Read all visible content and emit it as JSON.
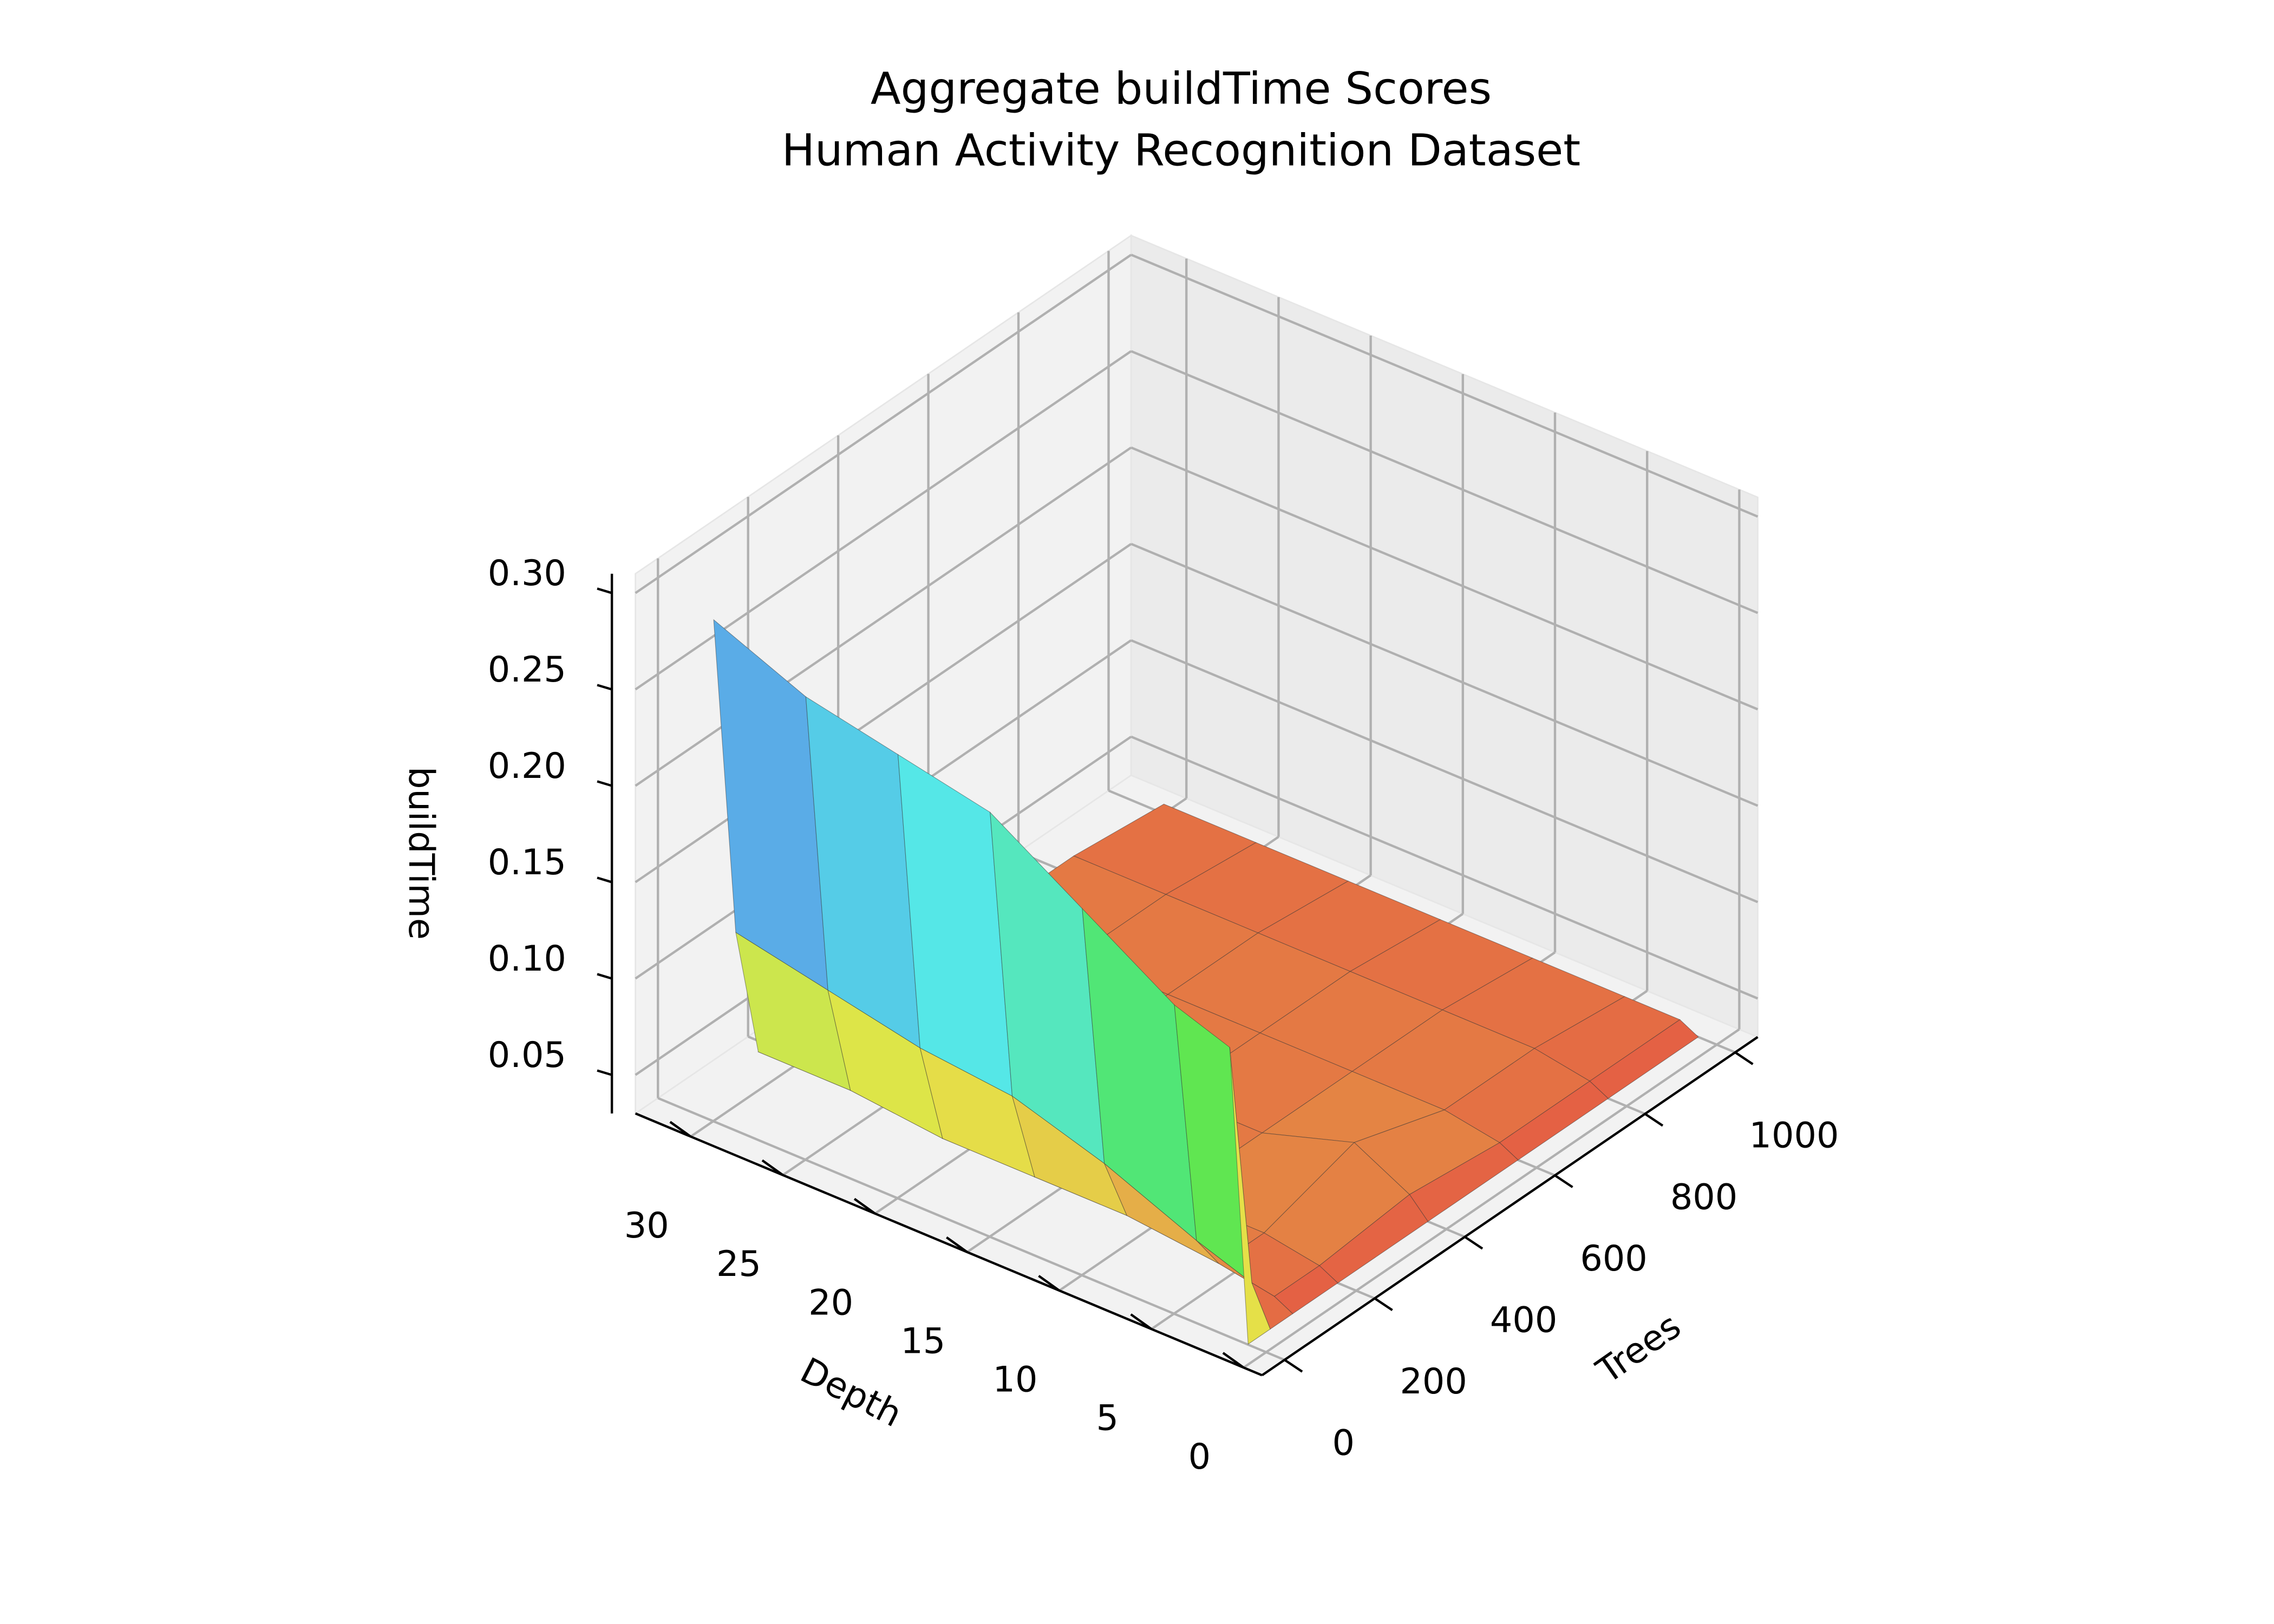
{
  "chart_data": {
    "type": "surface",
    "title": "Aggregate buildTime Scores",
    "subtitle": "Human Activity Recognition Dataset",
    "xlabel": "Trees",
    "ylabel": "Depth",
    "zlabel": "buildTime",
    "x": [
      1,
      50,
      100,
      200,
      400,
      600,
      800,
      1000
    ],
    "y": [
      1,
      2,
      5,
      10,
      15,
      20,
      25,
      30
    ],
    "z": [
      [
        0.03,
        0.03,
        0.03,
        0.03,
        0.03,
        0.03,
        0.03,
        0.03
      ],
      [
        0.18,
        0.05,
        0.035,
        0.035,
        0.04,
        0.035,
        0.035,
        0.035
      ],
      [
        0.19,
        0.06,
        0.04,
        0.04,
        0.055,
        0.04,
        0.04,
        0.035
      ],
      [
        0.22,
        0.08,
        0.045,
        0.04,
        0.04,
        0.04,
        0.04,
        0.035
      ],
      [
        0.25,
        0.095,
        0.045,
        0.04,
        0.04,
        0.04,
        0.04,
        0.035
      ],
      [
        0.26,
        0.1,
        0.045,
        0.04,
        0.04,
        0.04,
        0.04,
        0.035
      ],
      [
        0.27,
        0.11,
        0.05,
        0.04,
        0.04,
        0.04,
        0.04,
        0.035
      ],
      [
        0.29,
        0.12,
        0.05,
        0.04,
        0.04,
        0.04,
        0.04,
        0.035
      ]
    ],
    "xlim": [
      -50,
      1050
    ],
    "ylim": [
      -1,
      33
    ],
    "zlim": [
      0.03,
      0.31
    ],
    "xticks": [
      0,
      200,
      400,
      600,
      800,
      1000
    ],
    "yticks": [
      0,
      5,
      10,
      15,
      20,
      25,
      30
    ],
    "zticks": [
      0.05,
      {
        "value": 0.1,
        "label": "0.10"
      },
      0.15,
      {
        "value": 0.2,
        "label": "0.20"
      },
      0.25,
      {
        "value": 0.3,
        "label": "0.30"
      }
    ],
    "grid": true
  }
}
